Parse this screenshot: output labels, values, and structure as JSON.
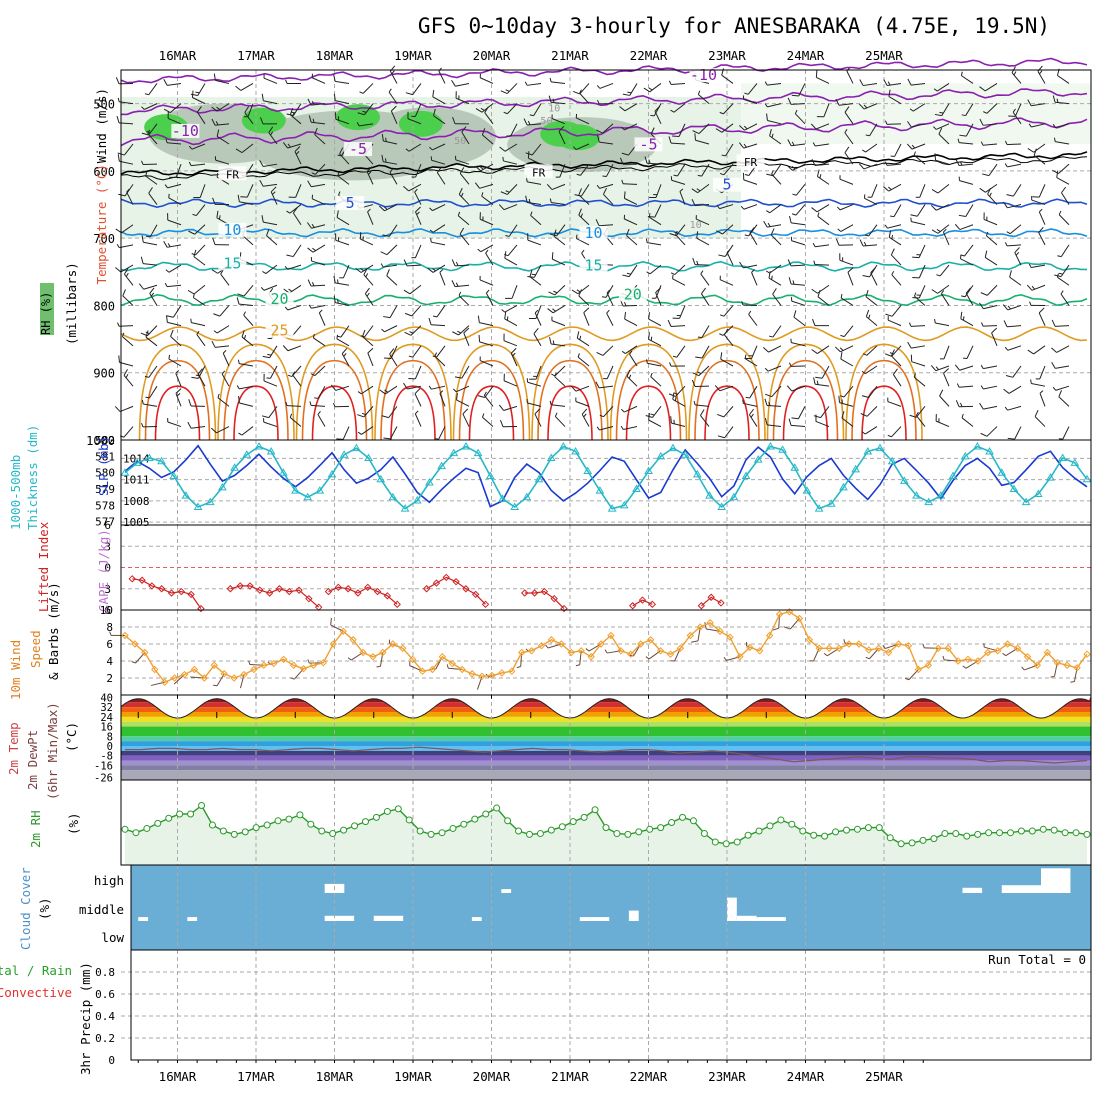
{
  "header": {
    "title": "GFS 0~10day 3-hourly for ANESBARAKA (4.75E, 19.5N)"
  },
  "date_labels": [
    "16MAR",
    "17MAR",
    "18MAR",
    "19MAR",
    "20MAR",
    "21MAR",
    "22MAR",
    "23MAR",
    "24MAR",
    "25MAR"
  ],
  "colors": {
    "grid": "#aaaaaa",
    "frame": "#000000",
    "rh_light": "#e6f3e6",
    "rh_mid": "#b9c9b9",
    "rh_dark": "#7fa67f",
    "rh_bright": "#4ccf4c",
    "temp_purple": "#8a20b0",
    "temp_blue": "#2050d0",
    "temp_lightblue": "#1a8ee0",
    "temp_teal": "#18b0a8",
    "temp_green": "#18b070",
    "temp_orange": "#e09a20",
    "temp_darkorange": "#e07020",
    "temp_red": "#e02020",
    "slp": "#1a3ad0",
    "thickness": "#27b8c8",
    "li": "#d02020",
    "wind": "#f0a030",
    "rh2m": "#2a9a2a",
    "cloud": "#6aaed6"
  },
  "chart_data": [
    {
      "type": "heatmap",
      "name": "upper-air cross section",
      "ylabel_parts": [
        "Wind (m/s)",
        "Temperature (°C)",
        "RH (%)",
        "(millibars)"
      ],
      "y_ticks": [
        500,
        600,
        700,
        800,
        900,
        1000
      ],
      "ylim": [
        450,
        1000
      ],
      "isotherm_labels": [
        {
          "text": "-10",
          "day": 0.1,
          "p": 545
        },
        {
          "text": "-10",
          "day": 6.7,
          "p": 462
        },
        {
          "text": "-5",
          "day": 2.3,
          "p": 572
        },
        {
          "text": "-5",
          "day": 6.0,
          "p": 565
        },
        {
          "text": "FR",
          "day": 0.7,
          "p": 608
        },
        {
          "text": "FR",
          "day": 4.6,
          "p": 605
        },
        {
          "text": "FR",
          "day": 7.3,
          "p": 590
        },
        {
          "text": "5",
          "day": 2.2,
          "p": 652
        },
        {
          "text": "5",
          "day": 7.0,
          "p": 625
        },
        {
          "text": "10",
          "day": 0.7,
          "p": 692
        },
        {
          "text": "10",
          "day": 5.3,
          "p": 697
        },
        {
          "text": "15",
          "day": 0.7,
          "p": 742
        },
        {
          "text": "15",
          "day": 5.3,
          "p": 745
        },
        {
          "text": "20",
          "day": 1.3,
          "p": 795
        },
        {
          "text": "20",
          "day": 5.8,
          "p": 788
        },
        {
          "text": "25",
          "day": 1.3,
          "p": 842
        }
      ],
      "rh_labels": [
        {
          "text": "10",
          "day": 4.8,
          "p": 512
        },
        {
          "text": "50",
          "day": 4.7,
          "p": 530
        },
        {
          "text": "50",
          "day": 3.6,
          "p": 560
        },
        {
          "text": "10",
          "day": 6.6,
          "p": 685
        }
      ]
    },
    {
      "type": "line",
      "name": "SLP and thickness",
      "ylabel_parts": [
        "1000-500mb",
        "Thickness (dm)",
        "SLP (mb)"
      ],
      "left_ticks": [
        577,
        578,
        579,
        580,
        581,
        582
      ],
      "right_ticks": [
        1005,
        1008,
        1011,
        1014
      ],
      "ylim_left": [
        576.8,
        582
      ],
      "ylim_right": [
        1004.6,
        1016.6
      ],
      "series": [
        {
          "key": "slp",
          "axis": "right",
          "values": [
            1012.2,
            1013.6,
            1012.6,
            1011.3,
            1012.1,
            1013.8,
            1015.8,
            1013.2,
            1010.8,
            1011.6,
            1013.0,
            1014.6,
            1012.8,
            1011.2,
            1010.0,
            1011.3,
            1013.0,
            1014.8,
            1012.4,
            1010.5,
            1011.2,
            1012.4,
            1014.2,
            1011.8,
            1009.2,
            1007.8,
            1009.6,
            1011.2,
            1012.6,
            1012.0,
            1007.2,
            1008.0,
            1011.3,
            1013.2,
            1012.0,
            1009.5,
            1008.0,
            1009.1,
            1010.5,
            1012.3,
            1014.2,
            1013.6,
            1011.0,
            1008.4,
            1009.2,
            1012.4,
            1015.2,
            1013.3,
            1011.2,
            1008.6,
            1010.1,
            1013.8,
            1015.6,
            1014.2,
            1011.1,
            1009.0,
            1011.4,
            1013.0,
            1014.0,
            1011.6,
            1009.8,
            1008.2,
            1010.3,
            1013.2,
            1014.0,
            1012.3,
            1010.5,
            1008.3,
            1010.9,
            1013.0,
            1014.0,
            1012.6,
            1010.2,
            1010.6,
            1012.4,
            1014.3,
            1015.0,
            1012.7,
            1011.2,
            1010.0
          ]
        },
        {
          "key": "thickness",
          "axis": "left",
          "values": [
            580.0,
            580.6,
            580.9,
            580.7,
            579.8,
            578.6,
            577.9,
            578.2,
            579.1,
            580.3,
            581.1,
            581.6,
            581.3,
            580.0,
            578.9,
            578.5,
            578.9,
            579.9,
            581.1,
            581.5,
            580.9,
            579.6,
            578.5,
            577.8,
            578.3,
            579.4,
            580.4,
            581.2,
            581.6,
            581.2,
            579.8,
            578.4,
            577.9,
            578.5,
            579.6,
            580.9,
            581.6,
            581.3,
            580.1,
            578.9,
            577.8,
            578.0,
            579.0,
            580.1,
            581.0,
            581.5,
            581.1,
            579.9,
            578.6,
            577.9,
            578.5,
            579.8,
            580.8,
            581.6,
            581.4,
            580.3,
            578.9,
            577.8,
            578.1,
            579.1,
            580.2,
            581.3,
            581.5,
            580.7,
            579.5,
            578.6,
            578.2,
            578.6,
            579.8,
            581.0,
            581.6,
            581.3,
            580.0,
            579.0,
            578.2,
            578.7,
            579.7,
            580.9,
            580.6,
            579.6
          ]
        }
      ]
    },
    {
      "type": "line",
      "name": "Lifted index and CAPE",
      "ylabel_parts": [
        "Lifted Index",
        "CAPE (J/kg)"
      ],
      "left_ticks": [
        -6,
        -3,
        0,
        3,
        6
      ],
      "ylim": [
        -6,
        6
      ],
      "series": [
        {
          "key": "li",
          "segments": [
            {
              "start": 0,
              "values": [
                1.6,
                1.8,
                2.6,
                3.0,
                3.6,
                3.4,
                3.8,
                5.8
              ]
            },
            {
              "start": 10,
              "values": [
                3.0,
                2.6,
                2.6,
                3.2,
                3.6,
                3.0,
                3.4,
                3.2,
                4.4,
                5.6
              ]
            },
            {
              "start": 20,
              "values": [
                3.4,
                2.8,
                3.0,
                3.6,
                2.8,
                3.4,
                4.0,
                5.2
              ]
            },
            {
              "start": 30,
              "values": [
                3.0,
                2.2,
                1.4,
                2.0,
                3.0,
                3.8,
                5.2
              ]
            },
            {
              "start": 40,
              "values": [
                3.6,
                3.6,
                3.4,
                4.4,
                5.8
              ]
            },
            {
              "start": 51,
              "values": [
                5.4,
                4.6,
                5.2
              ]
            },
            {
              "start": 58,
              "values": [
                5.4,
                4.2,
                5.0
              ]
            }
          ]
        }
      ]
    },
    {
      "type": "line",
      "name": "10m wind",
      "ylabel_parts": [
        "10m Wind",
        "Speed",
        "& Barbs (m/s)"
      ],
      "left_ticks": [
        2,
        4,
        6,
        8,
        10
      ],
      "ylim": [
        0,
        10
      ],
      "series": [
        {
          "key": "wind",
          "values": [
            7.0,
            6.0,
            5.0,
            3.0,
            1.5,
            2.0,
            2.4,
            3.0,
            2.0,
            3.5,
            2.5,
            2.0,
            2.4,
            3.0,
            3.5,
            3.7,
            4.2,
            3.5,
            3.1,
            3.5,
            3.8,
            6.0,
            7.5,
            6.5,
            5.0,
            4.5,
            5.0,
            6.0,
            5.5,
            4.2,
            2.8,
            3.0,
            4.5,
            3.7,
            3.0,
            2.5,
            2.2,
            2.3,
            2.6,
            2.8,
            5.0,
            5.2,
            5.8,
            6.5,
            6.0,
            5.0,
            5.2,
            4.5,
            6.0,
            7.0,
            5.2,
            4.8,
            6.0,
            6.5,
            5.2,
            4.8,
            5.5,
            7.0,
            8.0,
            8.5,
            7.5,
            6.8,
            4.5,
            5.6,
            5.2,
            7.0,
            9.5,
            9.8,
            9.0,
            6.5,
            5.5,
            5.5,
            5.5,
            6.0,
            6.0,
            5.3,
            5.5,
            5.0,
            6.0,
            5.8,
            3.0,
            3.5,
            5.5,
            5.5,
            4.0,
            4.2,
            4.0,
            5.0,
            5.2,
            6.0,
            5.5,
            4.5,
            3.5,
            5.0,
            3.8,
            3.5,
            3.2,
            4.8
          ]
        }
      ]
    },
    {
      "type": "area",
      "name": "2m temperature and dewpoint",
      "ylabel_parts": [
        "2m Temp",
        "2m DewPt",
        "(6hr Min/Max)",
        "(°C)"
      ],
      "left_ticks": [
        40,
        32,
        24,
        16,
        8,
        0,
        -8,
        -16,
        -26
      ],
      "ylim": [
        -28,
        42
      ],
      "series": [
        {
          "key": "temp",
          "daily_min": 23,
          "daily_max": 39
        },
        {
          "key": "dewpt",
          "values": [
            -3,
            -3,
            -2,
            -2,
            -3,
            -3,
            -2,
            -3,
            -3,
            -4,
            -3,
            -2,
            -2,
            -3,
            -4,
            -3,
            -2,
            -2,
            -1,
            -2,
            -3,
            -4,
            -5,
            -4,
            -3,
            -2,
            -3,
            -3,
            -4,
            -5,
            -4,
            -3,
            -3,
            -4,
            -6,
            -5,
            -4,
            -5,
            -7,
            -9,
            -11,
            -13,
            -12,
            -11,
            -10,
            -9,
            -10,
            -11,
            -9,
            -9,
            -10,
            -10,
            -11,
            -13,
            -12,
            -12,
            -13,
            -14,
            -13,
            -12
          ]
        }
      ]
    },
    {
      "type": "line",
      "name": "2m relative humidity",
      "ylabel_parts": [
        "2m RH",
        "(%)"
      ],
      "ylim": [
        0,
        100
      ],
      "series": [
        {
          "key": "rh2m",
          "values": [
            42,
            38,
            43,
            49,
            55,
            60,
            60,
            70,
            47,
            40,
            36,
            39,
            44,
            47,
            52,
            54,
            59,
            48,
            40,
            37,
            41,
            46,
            51,
            56,
            63,
            66,
            53,
            40,
            36,
            38,
            43,
            48,
            54,
            60,
            67,
            52,
            40,
            36,
            37,
            41,
            45,
            51,
            56,
            65,
            44,
            37,
            36,
            39,
            42,
            44,
            50,
            56,
            52,
            37,
            27,
            25,
            27,
            35,
            40,
            46,
            53,
            48,
            40,
            35,
            34,
            39,
            41,
            42,
            44,
            44,
            32,
            25,
            26,
            29,
            31,
            37,
            37,
            34,
            36,
            38,
            38,
            38,
            40,
            40,
            42,
            41,
            38,
            38,
            36
          ]
        }
      ]
    },
    {
      "type": "bar",
      "name": "cloud cover",
      "ylabel_parts": [
        "Cloud Cover",
        "(%)"
      ],
      "level_labels": [
        "high",
        "middle",
        "low"
      ],
      "cover": [
        {
          "level": "high",
          "start": 19,
          "end": 21,
          "frac": 0.35
        },
        {
          "level": "high",
          "start": 37,
          "end": 38,
          "frac": 0.15
        },
        {
          "level": "high",
          "start": 84,
          "end": 86,
          "frac": 0.2
        },
        {
          "level": "high",
          "start": 88,
          "end": 92,
          "frac": 0.3
        },
        {
          "level": "high",
          "start": 92,
          "end": 95,
          "frac": 0.95
        },
        {
          "level": "middle",
          "start": 0,
          "end": 1,
          "frac": 0.15
        },
        {
          "level": "middle",
          "start": 5,
          "end": 6,
          "frac": 0.15
        },
        {
          "level": "middle",
          "start": 19,
          "end": 22,
          "frac": 0.2
        },
        {
          "level": "middle",
          "start": 24,
          "end": 27,
          "frac": 0.2
        },
        {
          "level": "middle",
          "start": 34,
          "end": 35,
          "frac": 0.15
        },
        {
          "level": "middle",
          "start": 45,
          "end": 48,
          "frac": 0.15
        },
        {
          "level": "middle",
          "start": 50,
          "end": 51,
          "frac": 0.4
        },
        {
          "level": "middle",
          "start": 60,
          "end": 61,
          "frac": 0.9
        },
        {
          "level": "middle",
          "start": 61,
          "end": 63,
          "frac": 0.2
        },
        {
          "level": "middle",
          "start": 63,
          "end": 66,
          "frac": 0.15
        }
      ]
    },
    {
      "type": "bar",
      "name": "3hr precipitation",
      "ylabel_parts": [
        "Total / Rain",
        "Convective",
        "3hr Precip (mm)"
      ],
      "left_ticks": [
        "0",
        "0.2",
        "0.4",
        "0.6",
        "0.8"
      ],
      "ylim": [
        0,
        1
      ],
      "annotation": "Run Total = 0",
      "values": []
    }
  ]
}
